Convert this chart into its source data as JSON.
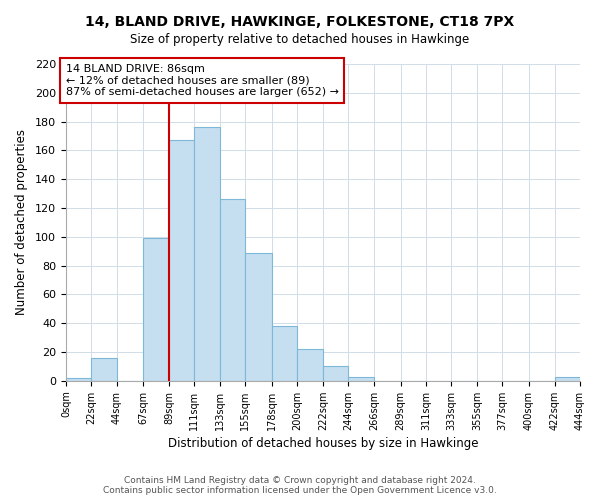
{
  "title": "14, BLAND DRIVE, HAWKINGE, FOLKESTONE, CT18 7PX",
  "subtitle": "Size of property relative to detached houses in Hawkinge",
  "xlabel": "Distribution of detached houses by size in Hawkinge",
  "ylabel": "Number of detached properties",
  "bin_edges": [
    0,
    22,
    44,
    67,
    89,
    111,
    133,
    155,
    178,
    200,
    222,
    244,
    266,
    289,
    311,
    333,
    355,
    377,
    400,
    422,
    444
  ],
  "bin_labels": [
    "0sqm",
    "22sqm",
    "44sqm",
    "67sqm",
    "89sqm",
    "111sqm",
    "133sqm",
    "155sqm",
    "178sqm",
    "200sqm",
    "222sqm",
    "244sqm",
    "266sqm",
    "289sqm",
    "311sqm",
    "333sqm",
    "355sqm",
    "377sqm",
    "400sqm",
    "422sqm",
    "444sqm"
  ],
  "counts": [
    2,
    16,
    0,
    99,
    167,
    176,
    126,
    89,
    38,
    22,
    10,
    3,
    0,
    0,
    0,
    0,
    0,
    0,
    0,
    3
  ],
  "bar_color": "#c5dff0",
  "bar_edge_color": "#7db8d8",
  "property_line_x": 89,
  "property_line_color": "#cc0000",
  "annotation_line1": "14 BLAND DRIVE: 86sqm",
  "annotation_line2": "← 12% of detached houses are smaller (89)",
  "annotation_line3": "87% of semi-detached houses are larger (652) →",
  "annotation_box_color": "#ffffff",
  "annotation_box_edge": "#cc0000",
  "ylim": [
    0,
    220
  ],
  "yticks": [
    0,
    20,
    40,
    60,
    80,
    100,
    120,
    140,
    160,
    180,
    200,
    220
  ],
  "footer": "Contains HM Land Registry data © Crown copyright and database right 2024.\nContains public sector information licensed under the Open Government Licence v3.0.",
  "bg_color": "#ffffff",
  "grid_color": "#d0dde8"
}
